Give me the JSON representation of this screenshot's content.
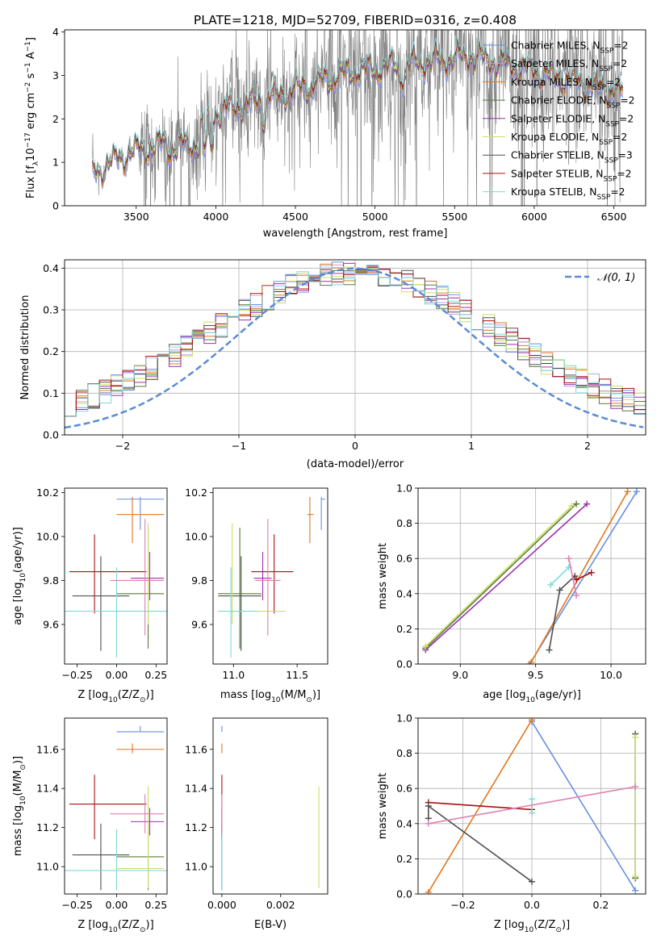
{
  "title": "PLATE=1218, MJD=52709, FIBERID=0316, z=0.408",
  "colors": {
    "Chabrier MILES": "#6a8fe0",
    "Salpeter MILES": "#b8a0e0",
    "Kroupa MILES": "#e07820",
    "Chabrier ELODIE": "#5a7a3a",
    "Salpeter ELODIE": "#9a30b0",
    "Kroupa ELODIE": "#c8e060",
    "Chabrier STELIB": "#505050",
    "Salpeter STELIB": "#a81010",
    "Kroupa STELIB": "#80d8d8",
    "pink": "#e080b0",
    "data": "#808080",
    "gauss": "#5b8bd6"
  },
  "chart_data": [
    {
      "id": "spectrum",
      "type": "line",
      "xlabel": "wavelength [Angstrom, rest frame]",
      "ylabel": "Flux [f",
      "ylabel_sub": "λ",
      "ylabel_rest": "10",
      "ylabel_sup": "−17",
      "ylabel_unit": " erg cm",
      "xlim": [
        3050,
        6700
      ],
      "ylim": [
        0,
        4.05
      ],
      "xticks": [
        "3500",
        "4000",
        "4500",
        "5000",
        "5500",
        "6000",
        "6500"
      ],
      "yticks": [
        "0",
        "1",
        "2",
        "3",
        "4"
      ],
      "legend_position": "upper-right",
      "legend": [
        {
          "name": "Chabrier MILES",
          "nssp": "2"
        },
        {
          "name": "Salpeter MILES",
          "nssp": "2"
        },
        {
          "name": "Kroupa MILES",
          "nssp": "2"
        },
        {
          "name": "Chabrier ELODIE",
          "nssp": "2"
        },
        {
          "name": "Salpeter ELODIE",
          "nssp": "2"
        },
        {
          "name": "Kroupa ELODIE",
          "nssp": "2"
        },
        {
          "name": "Chabrier STELIB",
          "nssp": "3"
        },
        {
          "name": "Salpeter STELIB",
          "nssp": "2"
        },
        {
          "name": "Kroupa STELIB",
          "nssp": "2"
        }
      ],
      "nssp_label": "N",
      "nssp_sub": "SSP"
    },
    {
      "id": "residuals",
      "type": "histogram",
      "xlabel": "(data-model)/error",
      "ylabel": "Normed distribution",
      "xlim": [
        -2.5,
        2.5
      ],
      "ylim": [
        0,
        0.42
      ],
      "xticks": [
        "−2",
        "−1",
        "0",
        "1",
        "2"
      ],
      "yticks": [
        "0.0",
        "0.1",
        "0.2",
        "0.3",
        "0.4"
      ],
      "grid": true,
      "legend": "𝒩(0, 1)",
      "bin_width": 0.1
    },
    {
      "id": "age-vs-Z",
      "type": "errorbar",
      "xlabel": "Z [log",
      "xlabel_tail": "(Z/Z",
      "ylabel": "age  [log",
      "ylabel_tail": "(age/yr)]",
      "xlim": [
        -0.33,
        0.32
      ],
      "ylim": [
        9.42,
        10.22
      ],
      "xticks": [
        "−0.25",
        "0.00",
        "0.25"
      ],
      "yticks": [
        "9.6",
        "9.8",
        "10.0",
        "10.2"
      ]
    },
    {
      "id": "age-vs-mass",
      "type": "errorbar",
      "xlabel": "mass [log",
      "xlabel_tail": "(M/M",
      "xlim": [
        10.84,
        11.74
      ],
      "ylim": [
        9.42,
        10.22
      ],
      "xticks": [
        "11.0",
        "11.5"
      ],
      "yticks": [
        "9.6",
        "9.8",
        "10.0",
        "10.2"
      ]
    },
    {
      "id": "weight-vs-age",
      "type": "line",
      "xlabel": "age  [log",
      "xlabel_tail": "(age/yr)]",
      "ylabel": "mass weight",
      "xlim": [
        8.72,
        10.23
      ],
      "ylim": [
        0,
        1
      ],
      "xticks": [
        "9.0",
        "9.5",
        "10.0"
      ],
      "yticks": [
        "0.0",
        "0.2",
        "0.4",
        "0.6",
        "0.8",
        "1.0"
      ],
      "grid": true
    },
    {
      "id": "mass-vs-Z",
      "type": "errorbar",
      "xlabel": "Z [log",
      "xlabel_tail": "(Z/Z",
      "ylabel": "mass [log",
      "ylabel_tail": "(M/M",
      "xlim": [
        -0.33,
        0.32
      ],
      "ylim": [
        10.86,
        11.76
      ],
      "xticks": [
        "−0.25",
        "0.00",
        "0.25"
      ],
      "yticks": [
        "11.0",
        "11.2",
        "11.4",
        "11.6"
      ]
    },
    {
      "id": "mass-vs-ebv",
      "type": "errorbar",
      "xlabel": "E(B-V)",
      "xlim": [
        -0.0003,
        0.0036
      ],
      "ylim": [
        10.86,
        11.76
      ],
      "xticks": [
        "0.000",
        "0.002"
      ],
      "yticks": [
        "11.0",
        "11.2",
        "11.4",
        "11.6"
      ]
    },
    {
      "id": "weight-vs-Z",
      "type": "line",
      "xlabel": "Z [log",
      "xlabel_tail": "(Z/Z",
      "ylabel": "mass weight",
      "xlim": [
        -0.33,
        0.33
      ],
      "ylim": [
        0,
        1
      ],
      "xticks": [
        "−0.2",
        "0.0",
        "0.2"
      ],
      "yticks": [
        "0.0",
        "0.2",
        "0.4",
        "0.6",
        "0.8",
        "1.0"
      ],
      "grid": true
    }
  ],
  "fits": [
    {
      "color": "Chabrier MILES",
      "age": 10.17,
      "age_err": [
        0.14,
        0.01
      ],
      "Z": 0.15,
      "Z_err": [
        0.15,
        0.15
      ],
      "mass": 11.69,
      "mass_err": [
        0.0,
        0.03
      ],
      "ebv": 0.0,
      "pts": [
        [
          9.46,
          0.0,
          0.3,
          0.02
        ],
        [
          10.17,
          0.98,
          0.0,
          0.98
        ]
      ]
    },
    {
      "color": "Kroupa MILES",
      "age": 10.1,
      "age_err": [
        0.13,
        0.08
      ],
      "Z": 0.1,
      "Z_err": [
        0.1,
        0.2
      ],
      "mass": 11.6,
      "mass_err": [
        0.02,
        0.03
      ],
      "ebv": 0.0,
      "pts": [
        [
          9.47,
          0.01,
          -0.3,
          0.01
        ],
        [
          10.11,
          0.98,
          0.0,
          0.99
        ]
      ]
    },
    {
      "color": "Salpeter STELIB",
      "age": 9.84,
      "age_err": [
        0.19,
        0.17
      ],
      "Z": -0.14,
      "Z_err": [
        0.16,
        0.33
      ],
      "mass": 11.32,
      "mass_err": [
        0.18,
        0.15
      ],
      "ebv": 0.0,
      "pts": [
        [
          9.77,
          0.48,
          0.0,
          0.48
        ],
        [
          9.87,
          0.52,
          -0.3,
          0.52
        ]
      ]
    },
    {
      "color": "Chabrier STELIB",
      "age": 9.73,
      "age_err": [
        0.25,
        0.18
      ],
      "Z": -0.1,
      "Z_err": [
        0.18,
        0.18
      ],
      "mass": 11.06,
      "mass_err": [
        0.18,
        0.16
      ],
      "ebv": 0.0,
      "pts": [
        [
          9.59,
          0.08,
          0.0,
          0.07
        ],
        [
          9.66,
          0.42,
          -0.3,
          0.43
        ],
        [
          9.76,
          0.5,
          -0.3,
          0.5
        ]
      ]
    },
    {
      "color": "Salpeter ELODIE",
      "age": 9.81,
      "age_err": [
        0.1,
        0.12
      ],
      "Z": 0.21,
      "Z_err": [
        0.12,
        0.09
      ],
      "mass": 11.23,
      "mass_err": [
        0.07,
        0.07
      ],
      "ebv": 0.0,
      "pts": [
        [
          8.77,
          0.08,
          0.3,
          0.09
        ],
        [
          9.84,
          0.91,
          0.3,
          0.91
        ]
      ]
    },
    {
      "color": "Chabrier ELODIE",
      "age": 9.74,
      "age_err": [
        0.25,
        0.3
      ],
      "Z": 0.2,
      "Z_err": [
        0.2,
        0.1
      ],
      "mass": 11.05,
      "mass_err": [
        0.17,
        0.17
      ],
      "ebv": 0.0,
      "pts": [
        [
          8.77,
          0.09,
          0.3,
          0.09
        ],
        [
          9.77,
          0.91,
          0.3,
          0.91
        ]
      ]
    },
    {
      "color": "Kroupa ELODIE",
      "age": 9.66,
      "age_err": [
        0.06,
        0.4
      ],
      "Z": 0.2,
      "Z_err": [
        0.2,
        0.1
      ],
      "mass": 10.99,
      "mass_err": [
        0.1,
        0.42
      ],
      "ebv": 0.0033,
      "pts": [
        [
          8.77,
          0.1,
          0.3,
          0.1
        ],
        [
          9.74,
          0.9,
          0.3,
          0.89
        ]
      ]
    },
    {
      "color": "Kroupa STELIB",
      "age": 9.66,
      "age_err": [
        0.21,
        0.2
      ],
      "Z": 0.0,
      "Z_err": [
        0.33,
        0.33
      ],
      "mass": 10.98,
      "mass_err": [
        0.1,
        0.21
      ],
      "ebv": 0.0,
      "pts": [
        [
          9.6,
          0.45,
          0.0,
          0.46
        ],
        [
          9.72,
          0.55,
          0.0,
          0.54
        ]
      ]
    },
    {
      "color": "pink",
      "age": 9.8,
      "age_err": [
        0.25,
        0.28
      ],
      "Z": 0.18,
      "Z_err": [
        0.22,
        0.12
      ],
      "mass": 11.27,
      "mass_err": [
        0.1,
        0.1
      ],
      "ebv": 0.0,
      "pts": [
        [
          9.72,
          0.6,
          -0.3,
          0.4
        ],
        [
          9.77,
          0.39,
          0.3,
          0.61
        ]
      ]
    }
  ]
}
